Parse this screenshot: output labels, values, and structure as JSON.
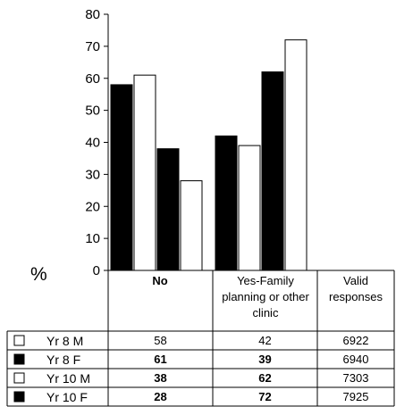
{
  "chart_data": {
    "type": "bar",
    "ylabel": "%",
    "ylim": [
      0,
      80
    ],
    "yticks": [
      0,
      10,
      20,
      30,
      40,
      50,
      60,
      70,
      80
    ],
    "categories": [
      "No",
      "Yes-Family planning or other clinic"
    ],
    "extra_column_header": "Valid responses",
    "series": [
      {
        "name": "Yr 8 M",
        "fill": "#000000",
        "values": [
          58,
          42
        ],
        "valid": "6922"
      },
      {
        "name": "Yr 8 F",
        "fill": "#ffffff",
        "values": [
          61,
          39
        ],
        "valid": "6940"
      },
      {
        "name": "Yr 10 M",
        "fill": "#000000",
        "values": [
          38,
          62
        ],
        "valid": "7303"
      },
      {
        "name": "Yr 10 F",
        "fill": "#ffffff",
        "values": [
          28,
          72
        ],
        "valid": "7925"
      }
    ],
    "table": {
      "rows": [
        {
          "label": "Yr 8 M",
          "legend_fill": "#ffffff",
          "cells": [
            "58",
            "42",
            "6922"
          ],
          "bold": false
        },
        {
          "label": "Yr 8 F",
          "legend_fill": "#000000",
          "cells": [
            "61",
            "39",
            "6940"
          ],
          "bold": true
        },
        {
          "label": "Yr 10 M",
          "legend_fill": "#ffffff",
          "cells": [
            "38",
            "62",
            "7303"
          ],
          "bold": true
        },
        {
          "label": "Yr 10 F",
          "legend_fill": "#000000",
          "cells": [
            "28",
            "72",
            "7925"
          ],
          "bold": true
        }
      ]
    }
  }
}
